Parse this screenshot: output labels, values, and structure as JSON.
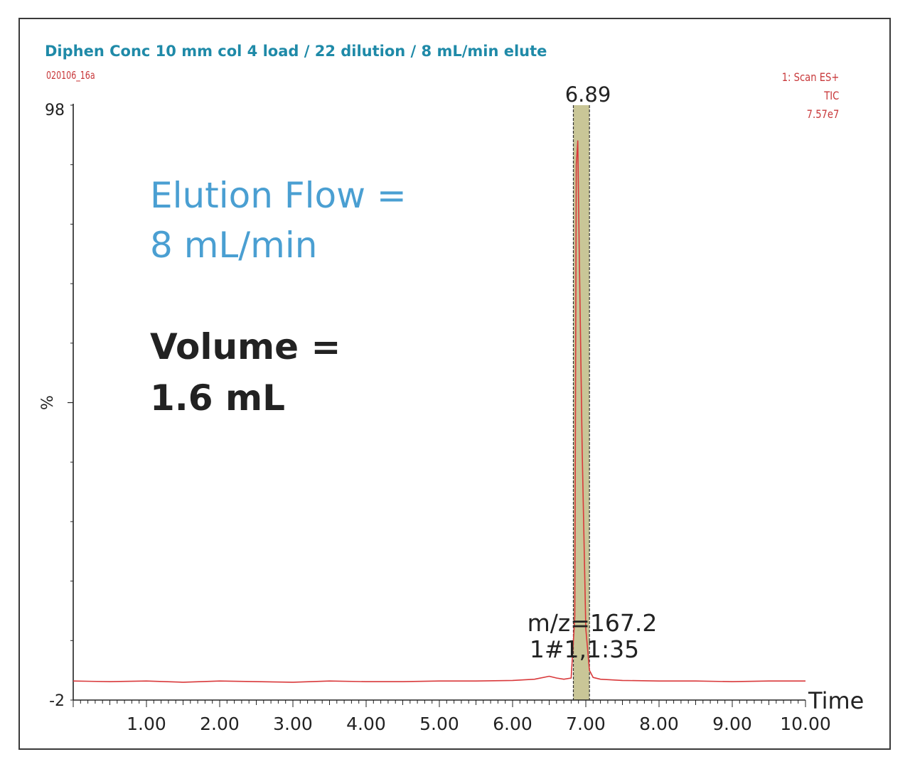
{
  "chart_data": {
    "type": "line",
    "title": "Diphen Conc 10 mm col 4 load / 22 dilution / 8 mL/min elute",
    "subtitle": "020106_16a",
    "scan_info": [
      "1: Scan ES+",
      "TIC",
      "7.57e7"
    ],
    "xlabel": "Time",
    "ylabel": "%",
    "xlim": [
      0.0,
      10.0
    ],
    "ylim": [
      -2,
      98
    ],
    "x_tick_labels": [
      "1.00",
      "2.00",
      "3.00",
      "4.00",
      "5.00",
      "6.00",
      "7.00",
      "8.00",
      "9.00",
      "10.00"
    ],
    "y_tick_labels": [
      "98",
      "-2"
    ],
    "peak_label": "6.89",
    "mz_label": "m/z=167.2",
    "scan_label": "1#1,1:35",
    "highlight_range": [
      6.83,
      7.05
    ],
    "annotations": {
      "elution_flow": [
        "Elution Flow =",
        "8 mL/min"
      ],
      "volume": [
        "Volume =",
        "1.6 mL"
      ]
    },
    "series": [
      {
        "color": "#d9393b",
        "points": [
          [
            0.0,
            1.2
          ],
          [
            0.5,
            1.1
          ],
          [
            1.0,
            1.2
          ],
          [
            1.5,
            1.0
          ],
          [
            2.0,
            1.2
          ],
          [
            2.5,
            1.1
          ],
          [
            3.0,
            1.0
          ],
          [
            3.5,
            1.2
          ],
          [
            4.0,
            1.1
          ],
          [
            4.5,
            1.1
          ],
          [
            5.0,
            1.2
          ],
          [
            5.5,
            1.2
          ],
          [
            6.0,
            1.3
          ],
          [
            6.3,
            1.5
          ],
          [
            6.5,
            2.0
          ],
          [
            6.6,
            1.7
          ],
          [
            6.7,
            1.5
          ],
          [
            6.8,
            1.7
          ],
          [
            6.85,
            12.0
          ],
          [
            6.87,
            88.0
          ],
          [
            6.89,
            92.0
          ],
          [
            6.91,
            74.0
          ],
          [
            6.95,
            40.0
          ],
          [
            7.0,
            10.0
          ],
          [
            7.05,
            3.0
          ],
          [
            7.1,
            1.8
          ],
          [
            7.2,
            1.5
          ],
          [
            7.5,
            1.3
          ],
          [
            8.0,
            1.2
          ],
          [
            8.5,
            1.2
          ],
          [
            9.0,
            1.1
          ],
          [
            9.5,
            1.2
          ],
          [
            10.0,
            1.2
          ]
        ]
      }
    ]
  }
}
